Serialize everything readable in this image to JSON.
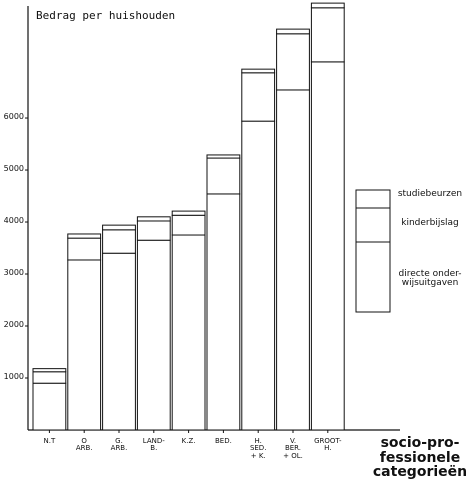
{
  "chart_data": {
    "type": "stacked_bar",
    "title": "Bedrag per huishouden",
    "x_label": "socio-pro-\nfessionele\ncategorieën",
    "categories": [
      "N.T",
      "O\nARB.",
      "G.\nARB.",
      "LAND-\nB.",
      "K.Z.",
      "BED.",
      "H.\nSED.\n+ K.",
      "V.\nBER.\n+ OL.",
      "GROOT-\nH."
    ],
    "series": [
      {
        "name": "directe onder-\nwijsuitgaven",
        "color": "#ffffff",
        "values": [
          900,
          3270,
          3400,
          3650,
          3750,
          4540,
          5940,
          6540,
          7080
        ]
      },
      {
        "name": "kinderbijslag",
        "color": "#ffffff",
        "values": [
          220,
          420,
          450,
          370,
          380,
          690,
          930,
          1080,
          1040
        ]
      },
      {
        "name": "studiebeurzen",
        "color": "#ffffff",
        "values": [
          60,
          80,
          90,
          80,
          80,
          60,
          70,
          90,
          90
        ]
      }
    ],
    "ylim": [
      0,
      8270
    ],
    "yticks": [
      1000,
      2000,
      3000,
      4000,
      5000,
      6000
    ],
    "grid": false
  }
}
